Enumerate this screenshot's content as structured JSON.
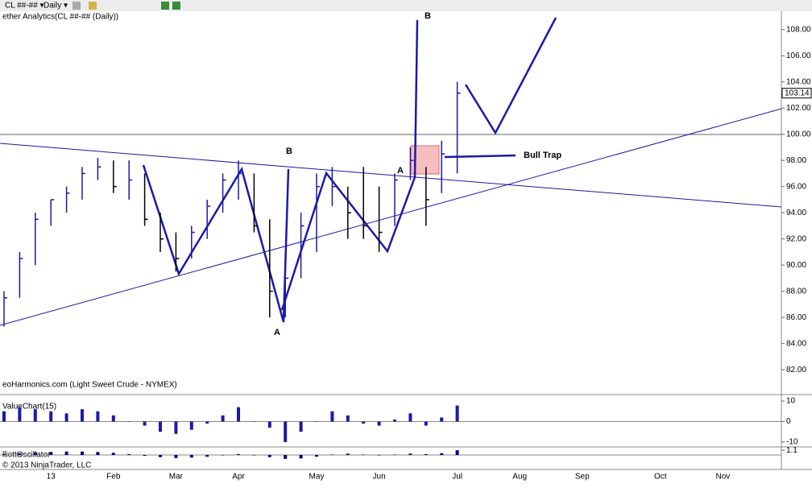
{
  "toolbar": {
    "instrument": "CL ##-## ▾",
    "period": "Daily ▾"
  },
  "chart_data": [
    {
      "type": "ohlc",
      "title": "ether Analytics(CL ##-## (Daily))",
      "watermark": "eoHarmonics.com (Light Sweet Crude - NYMEX)",
      "categories": [
        null,
        null,
        null,
        "13",
        null,
        null,
        null,
        "Feb",
        null,
        null,
        null,
        "Mar",
        null,
        null,
        null,
        "Apr",
        null,
        null,
        null,
        null,
        "May",
        null,
        null,
        null,
        "Jun",
        null,
        null,
        null,
        null,
        "Jul",
        null,
        null,
        null,
        "Aug",
        null,
        null,
        null,
        "Sep",
        null,
        null,
        null,
        null,
        "Oct",
        null,
        null,
        null,
        "Nov",
        null
      ],
      "high": [
        88,
        91,
        94,
        95,
        96,
        97.5,
        98.2,
        98,
        98,
        97,
        94,
        92.5,
        93,
        95,
        97,
        98,
        97,
        93.5,
        91,
        94,
        97,
        97.5,
        96,
        97.5,
        96,
        97,
        99,
        97.5,
        99.5,
        104,
        null,
        null,
        null,
        null,
        null,
        null,
        null,
        null,
        null,
        null,
        null,
        null,
        null,
        null,
        null,
        null,
        null,
        null
      ],
      "low": [
        85.3,
        87.5,
        90,
        93,
        94,
        95,
        96.5,
        95.5,
        95,
        93,
        91,
        89.5,
        90.5,
        92,
        94,
        95,
        92.5,
        86,
        86,
        89,
        91,
        94.5,
        92,
        92,
        91,
        93,
        96.5,
        93,
        95.5,
        97,
        null,
        null,
        null,
        null,
        null,
        null,
        null,
        null,
        null,
        null,
        null,
        null,
        null,
        null,
        null,
        null,
        null,
        null
      ],
      "close": [
        87.5,
        90.5,
        93.5,
        95,
        95.5,
        97,
        97.5,
        96,
        96.5,
        93.5,
        92,
        90.5,
        92.5,
        94.5,
        96.5,
        97,
        93,
        88,
        89,
        93,
        96,
        96,
        94,
        93,
        92.5,
        96.5,
        98,
        95,
        98.5,
        103.14,
        null,
        null,
        null,
        null,
        null,
        null,
        null,
        null,
        null,
        null,
        null,
        null,
        null,
        null,
        null,
        null,
        null,
        null
      ],
      "up_color": "#1a1aa8",
      "down_color": "#000000",
      "ylim": [
        80.1,
        109.4
      ],
      "yticks": [
        {
          "value": 82,
          "label": "82.00"
        },
        {
          "value": 84,
          "label": "84.00"
        },
        {
          "value": 86,
          "label": "86.00"
        },
        {
          "value": 88,
          "label": "88.00"
        },
        {
          "value": 90,
          "label": "90.00"
        },
        {
          "value": 92,
          "label": "92.00"
        },
        {
          "value": 94,
          "label": "94.00"
        },
        {
          "value": 96,
          "label": "96.00"
        },
        {
          "value": 98,
          "label": "98.00"
        },
        {
          "value": 100,
          "label": "100.00"
        },
        {
          "value": 102,
          "label": "102.00"
        },
        {
          "value": 104,
          "label": "104.00"
        },
        {
          "value": 106,
          "label": "106.00"
        },
        {
          "value": 108,
          "label": "108.00"
        }
      ],
      "annotations": [
        "B",
        "B",
        "A",
        "A",
        "Bull Trap"
      ]
    },
    {
      "type": "bar",
      "title": "ValueChart(15)",
      "values": [
        5,
        7,
        6,
        5,
        4,
        6,
        5,
        3,
        0,
        -2,
        -5,
        -6,
        -4,
        -1,
        3,
        7,
        0,
        -3,
        -10,
        -5,
        0,
        5,
        3,
        -1,
        -2,
        1,
        4,
        -2,
        2,
        7.82
      ],
      "color": "#1a1aa8",
      "ylim": [
        -11.6,
        10.4
      ],
      "yticks": [
        10,
        0,
        -10
      ]
    },
    {
      "type": "bar",
      "title": "lliottOscillator",
      "values": [
        0.2,
        0.4,
        0.6,
        0.7,
        0.8,
        0.8,
        0.7,
        0.5,
        0.2,
        -0.2,
        -0.5,
        -0.7,
        -0.6,
        -0.4,
        -0.1,
        0.2,
        -0.1,
        -0.5,
        -0.9,
        -0.8,
        -0.4,
        0.1,
        0.3,
        0.1,
        -0.1,
        0.1,
        0.3,
        0.2,
        0.4,
        1.1
      ],
      "color": "#000080",
      "ylim": [
        -1.5,
        1.5
      ],
      "yticks": [
        {
          "value": 1.1,
          "label": "1.1"
        }
      ]
    }
  ],
  "copyright": "© 2013 NinjaTrader, LLC"
}
